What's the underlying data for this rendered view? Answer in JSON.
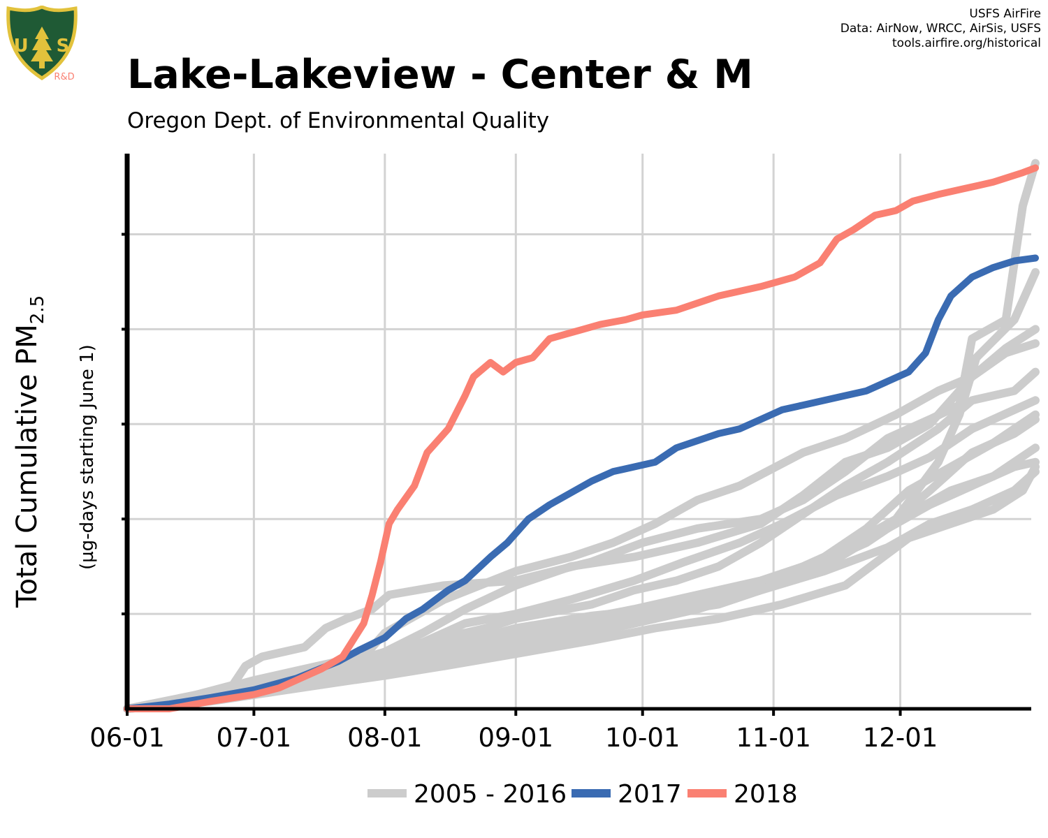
{
  "header": {
    "title": "Lake-Lakeview - Center & M",
    "subtitle": "Oregon Dept. of Environmental Quality",
    "logo_text": "R&D",
    "credits": [
      "USFS AirFire",
      "Data: AirNow, WRCC, AirSis, USFS",
      "tools.airfire.org/historical"
    ]
  },
  "colors": {
    "history": "#cccccc",
    "y2017": "#3a6bb2",
    "y2018": "#fa8072",
    "logo_green": "#1f5a35",
    "logo_gold": "#e2c23c"
  },
  "chart_data": {
    "type": "line",
    "title": "Lake-Lakeview - Center & M",
    "subtitle": "Oregon Dept. of Environmental Quality",
    "ylabel": "Total Cumulative PM",
    "ylabel_sub": "2.5",
    "ylabel2": "(µg-days starting June 1)",
    "x_domain": [
      "06-01",
      "12-31"
    ],
    "x_ticks": [
      {
        "label": "06-01",
        "day": 0
      },
      {
        "label": "07-01",
        "day": 30
      },
      {
        "label": "08-01",
        "day": 61
      },
      {
        "label": "09-01",
        "day": 92
      },
      {
        "label": "10-01",
        "day": 122
      },
      {
        "label": "11-01",
        "day": 153
      },
      {
        "label": "12-01",
        "day": 183
      }
    ],
    "x_units": "days since June 1",
    "y_range": [
      0,
      5.85
    ],
    "y_gridlines": [
      1,
      2,
      3,
      4,
      5
    ],
    "y_tick_labels_shown": false,
    "grid": true,
    "legend": {
      "position": "bottom",
      "items": [
        {
          "label": "2005 - 2016",
          "color_key": "history"
        },
        {
          "label": "2017",
          "color_key": "y2017"
        },
        {
          "label": "2018",
          "color_key": "y2018"
        }
      ]
    },
    "history_series_count": 12,
    "history": [
      [
        [
          0,
          0
        ],
        [
          14,
          0.12
        ],
        [
          25,
          0.25
        ],
        [
          28,
          0.45
        ],
        [
          32,
          0.55
        ],
        [
          42,
          0.65
        ],
        [
          47,
          0.85
        ],
        [
          52,
          0.95
        ],
        [
          58,
          1.05
        ],
        [
          62,
          1.2
        ],
        [
          75,
          1.3
        ],
        [
          92,
          1.35
        ],
        [
          110,
          1.55
        ],
        [
          122,
          1.75
        ],
        [
          135,
          1.9
        ],
        [
          150,
          2.0
        ],
        [
          160,
          2.2
        ],
        [
          170,
          2.5
        ],
        [
          180,
          2.85
        ],
        [
          190,
          3.05
        ],
        [
          197,
          3.2
        ],
        [
          200,
          3.9
        ],
        [
          208,
          4.1
        ],
        [
          212,
          5.3
        ],
        [
          215,
          5.75
        ]
      ],
      [
        [
          0,
          0
        ],
        [
          20,
          0.18
        ],
        [
          30,
          0.3
        ],
        [
          40,
          0.4
        ],
        [
          50,
          0.5
        ],
        [
          61,
          0.58
        ],
        [
          75,
          0.7
        ],
        [
          92,
          0.8
        ],
        [
          105,
          0.92
        ],
        [
          120,
          1.05
        ],
        [
          135,
          1.2
        ],
        [
          150,
          1.35
        ],
        [
          160,
          1.5
        ],
        [
          170,
          1.7
        ],
        [
          182,
          2.0
        ],
        [
          192,
          2.6
        ],
        [
          197,
          3.1
        ],
        [
          201,
          3.7
        ],
        [
          210,
          4.1
        ],
        [
          215,
          4.6
        ]
      ],
      [
        [
          0,
          0
        ],
        [
          25,
          0.22
        ],
        [
          40,
          0.35
        ],
        [
          50,
          0.45
        ],
        [
          61,
          0.6
        ],
        [
          70,
          0.8
        ],
        [
          80,
          1.05
        ],
        [
          92,
          1.3
        ],
        [
          105,
          1.5
        ],
        [
          120,
          1.6
        ],
        [
          135,
          1.75
        ],
        [
          150,
          1.95
        ],
        [
          160,
          2.25
        ],
        [
          170,
          2.6
        ],
        [
          180,
          2.75
        ],
        [
          190,
          3.0
        ],
        [
          200,
          3.5
        ],
        [
          208,
          3.8
        ],
        [
          215,
          4.0
        ]
      ],
      [
        [
          0,
          0
        ],
        [
          15,
          0.08
        ],
        [
          30,
          0.2
        ],
        [
          45,
          0.3
        ],
        [
          55,
          0.5
        ],
        [
          61,
          0.8
        ],
        [
          75,
          1.15
        ],
        [
          92,
          1.45
        ],
        [
          105,
          1.6
        ],
        [
          115,
          1.75
        ],
        [
          125,
          1.95
        ],
        [
          135,
          2.2
        ],
        [
          145,
          2.35
        ],
        [
          160,
          2.7
        ],
        [
          170,
          2.85
        ],
        [
          182,
          3.1
        ],
        [
          192,
          3.35
        ],
        [
          200,
          3.5
        ],
        [
          208,
          3.75
        ],
        [
          215,
          3.85
        ]
      ],
      [
        [
          0,
          0
        ],
        [
          18,
          0.12
        ],
        [
          32,
          0.22
        ],
        [
          45,
          0.38
        ],
        [
          61,
          0.55
        ],
        [
          72,
          0.72
        ],
        [
          85,
          0.85
        ],
        [
          92,
          0.95
        ],
        [
          110,
          1.1
        ],
        [
          120,
          1.25
        ],
        [
          130,
          1.35
        ],
        [
          140,
          1.5
        ],
        [
          150,
          1.75
        ],
        [
          160,
          2.05
        ],
        [
          170,
          2.35
        ],
        [
          180,
          2.6
        ],
        [
          192,
          2.95
        ],
        [
          200,
          3.25
        ],
        [
          210,
          3.35
        ],
        [
          215,
          3.55
        ]
      ],
      [
        [
          0,
          0
        ],
        [
          22,
          0.15
        ],
        [
          38,
          0.3
        ],
        [
          50,
          0.42
        ],
        [
          61,
          0.6
        ],
        [
          70,
          0.7
        ],
        [
          80,
          0.9
        ],
        [
          92,
          1.0
        ],
        [
          105,
          1.15
        ],
        [
          120,
          1.35
        ],
        [
          132,
          1.55
        ],
        [
          145,
          1.75
        ],
        [
          155,
          1.95
        ],
        [
          168,
          2.25
        ],
        [
          180,
          2.45
        ],
        [
          190,
          2.65
        ],
        [
          200,
          2.95
        ],
        [
          210,
          3.15
        ],
        [
          215,
          3.25
        ]
      ],
      [
        [
          0,
          0
        ],
        [
          16,
          0.1
        ],
        [
          30,
          0.22
        ],
        [
          42,
          0.32
        ],
        [
          55,
          0.42
        ],
        [
          61,
          0.5
        ],
        [
          75,
          0.65
        ],
        [
          92,
          0.85
        ],
        [
          110,
          0.98
        ],
        [
          125,
          1.05
        ],
        [
          140,
          1.2
        ],
        [
          155,
          1.4
        ],
        [
          165,
          1.6
        ],
        [
          175,
          1.9
        ],
        [
          185,
          2.3
        ],
        [
          195,
          2.55
        ],
        [
          205,
          2.8
        ],
        [
          215,
          3.1
        ]
      ],
      [
        [
          0,
          0
        ],
        [
          20,
          0.12
        ],
        [
          35,
          0.26
        ],
        [
          50,
          0.4
        ],
        [
          61,
          0.52
        ],
        [
          75,
          0.62
        ],
        [
          92,
          0.75
        ],
        [
          105,
          0.85
        ],
        [
          120,
          0.98
        ],
        [
          135,
          1.15
        ],
        [
          150,
          1.3
        ],
        [
          165,
          1.5
        ],
        [
          178,
          1.85
        ],
        [
          190,
          2.3
        ],
        [
          200,
          2.7
        ],
        [
          210,
          2.9
        ],
        [
          215,
          3.05
        ]
      ],
      [
        [
          0,
          0
        ],
        [
          15,
          0.08
        ],
        [
          30,
          0.18
        ],
        [
          45,
          0.3
        ],
        [
          61,
          0.45
        ],
        [
          72,
          0.5
        ],
        [
          85,
          0.6
        ],
        [
          92,
          0.65
        ],
        [
          110,
          0.8
        ],
        [
          125,
          0.95
        ],
        [
          140,
          1.15
        ],
        [
          155,
          1.35
        ],
        [
          165,
          1.55
        ],
        [
          175,
          1.75
        ],
        [
          185,
          2.05
        ],
        [
          195,
          2.3
        ],
        [
          205,
          2.45
        ],
        [
          215,
          2.75
        ]
      ],
      [
        [
          0,
          0
        ],
        [
          20,
          0.1
        ],
        [
          35,
          0.2
        ],
        [
          50,
          0.32
        ],
        [
          61,
          0.42
        ],
        [
          75,
          0.55
        ],
        [
          92,
          0.7
        ],
        [
          110,
          0.85
        ],
        [
          125,
          1.0
        ],
        [
          140,
          1.1
        ],
        [
          150,
          1.25
        ],
        [
          160,
          1.45
        ],
        [
          170,
          1.65
        ],
        [
          180,
          1.9
        ],
        [
          190,
          2.15
        ],
        [
          200,
          2.35
        ],
        [
          210,
          2.55
        ],
        [
          215,
          2.6
        ]
      ],
      [
        [
          0,
          0
        ],
        [
          18,
          0.08
        ],
        [
          30,
          0.15
        ],
        [
          45,
          0.25
        ],
        [
          61,
          0.38
        ],
        [
          75,
          0.48
        ],
        [
          92,
          0.62
        ],
        [
          105,
          0.75
        ],
        [
          120,
          0.9
        ],
        [
          135,
          1.05
        ],
        [
          150,
          1.25
        ],
        [
          165,
          1.45
        ],
        [
          180,
          1.7
        ],
        [
          190,
          1.95
        ],
        [
          200,
          2.1
        ],
        [
          210,
          2.3
        ],
        [
          215,
          2.5
        ]
      ],
      [
        [
          0,
          0
        ],
        [
          20,
          0.08
        ],
        [
          35,
          0.18
        ],
        [
          50,
          0.28
        ],
        [
          61,
          0.35
        ],
        [
          75,
          0.45
        ],
        [
          92,
          0.58
        ],
        [
          110,
          0.72
        ],
        [
          125,
          0.85
        ],
        [
          140,
          0.95
        ],
        [
          155,
          1.1
        ],
        [
          170,
          1.3
        ],
        [
          185,
          1.8
        ],
        [
          195,
          1.95
        ],
        [
          205,
          2.1
        ],
        [
          212,
          2.3
        ],
        [
          215,
          2.55
        ]
      ]
    ],
    "series": [
      {
        "name": "2017",
        "color_key": "y2017",
        "points": [
          [
            0,
            0
          ],
          [
            10,
            0.05
          ],
          [
            20,
            0.12
          ],
          [
            30,
            0.2
          ],
          [
            40,
            0.32
          ],
          [
            50,
            0.5
          ],
          [
            55,
            0.62
          ],
          [
            61,
            0.75
          ],
          [
            66,
            0.95
          ],
          [
            70,
            1.05
          ],
          [
            76,
            1.25
          ],
          [
            80,
            1.35
          ],
          [
            86,
            1.6
          ],
          [
            90,
            1.75
          ],
          [
            95,
            2.0
          ],
          [
            100,
            2.15
          ],
          [
            110,
            2.4
          ],
          [
            115,
            2.5
          ],
          [
            125,
            2.6
          ],
          [
            130,
            2.75
          ],
          [
            140,
            2.9
          ],
          [
            145,
            2.95
          ],
          [
            150,
            3.05
          ],
          [
            155,
            3.15
          ],
          [
            160,
            3.2
          ],
          [
            170,
            3.3
          ],
          [
            175,
            3.35
          ],
          [
            185,
            3.55
          ],
          [
            189,
            3.75
          ],
          [
            192,
            4.1
          ],
          [
            195,
            4.35
          ],
          [
            200,
            4.55
          ],
          [
            205,
            4.65
          ],
          [
            210,
            4.72
          ],
          [
            215,
            4.75
          ]
        ]
      },
      {
        "name": "2018",
        "color_key": "y2018",
        "points": [
          [
            0,
            0
          ],
          [
            10,
            0
          ],
          [
            20,
            0.08
          ],
          [
            30,
            0.15
          ],
          [
            36,
            0.22
          ],
          [
            41,
            0.32
          ],
          [
            46,
            0.42
          ],
          [
            51,
            0.55
          ],
          [
            56,
            0.9
          ],
          [
            58,
            1.2
          ],
          [
            60,
            1.55
          ],
          [
            62,
            1.95
          ],
          [
            64,
            2.1
          ],
          [
            68,
            2.35
          ],
          [
            71,
            2.7
          ],
          [
            76,
            2.95
          ],
          [
            80,
            3.3
          ],
          [
            82,
            3.5
          ],
          [
            86,
            3.65
          ],
          [
            89,
            3.55
          ],
          [
            92,
            3.65
          ],
          [
            96,
            3.7
          ],
          [
            100,
            3.9
          ],
          [
            104,
            3.95
          ],
          [
            108,
            4.0
          ],
          [
            112,
            4.05
          ],
          [
            118,
            4.1
          ],
          [
            122,
            4.15
          ],
          [
            130,
            4.2
          ],
          [
            140,
            4.35
          ],
          [
            150,
            4.45
          ],
          [
            158,
            4.55
          ],
          [
            164,
            4.7
          ],
          [
            168,
            4.95
          ],
          [
            172,
            5.05
          ],
          [
            177,
            5.2
          ],
          [
            182,
            5.25
          ],
          [
            186,
            5.35
          ],
          [
            192,
            5.42
          ],
          [
            198,
            5.48
          ],
          [
            205,
            5.55
          ],
          [
            212,
            5.65
          ],
          [
            215,
            5.7
          ]
        ]
      }
    ]
  }
}
